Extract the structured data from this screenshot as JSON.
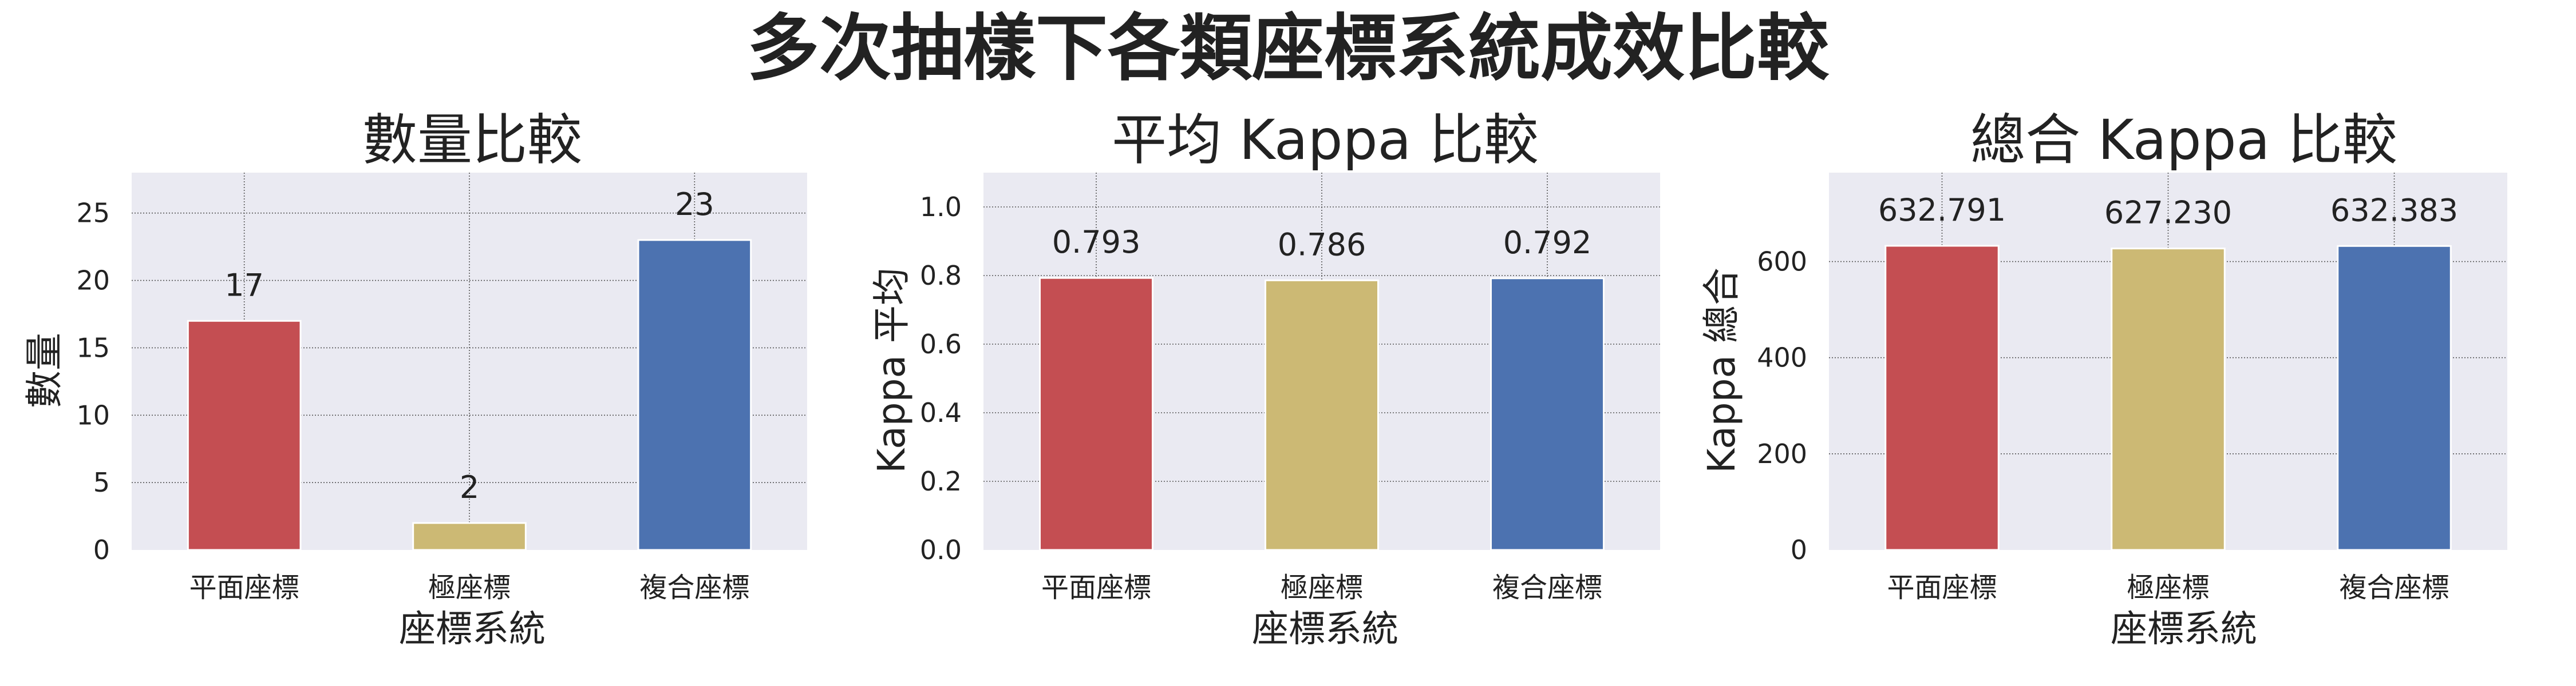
{
  "suptitle": "多次抽樣下各類座標系統成效比較",
  "colors": {
    "plot_bg": "#eaeaf2",
    "grid": "#555555",
    "text": "#222222"
  },
  "chart_data": [
    {
      "type": "bar",
      "title": "數量比較",
      "xlabel": "座標系統",
      "ylabel": "數量",
      "categories": [
        "平面座標",
        "極座標",
        "複合座標"
      ],
      "values": [
        17,
        2,
        23
      ],
      "data_labels": [
        "17",
        "2",
        "23"
      ],
      "colors": [
        "#c44e52",
        "#ccb974",
        "#4c72b0"
      ],
      "ylim": [
        0,
        28
      ],
      "yticks": [
        0,
        5,
        10,
        15,
        20,
        25
      ],
      "ytick_labels": [
        "0",
        "5",
        "10",
        "15",
        "20",
        "25"
      ],
      "grid": true
    },
    {
      "type": "bar",
      "title": "平均 Kappa 比較",
      "xlabel": "座標系統",
      "ylabel": "Kappa 平均",
      "categories": [
        "平面座標",
        "極座標",
        "複合座標"
      ],
      "values": [
        0.793,
        0.786,
        0.792
      ],
      "data_labels": [
        "0.793",
        "0.786",
        "0.792"
      ],
      "colors": [
        "#c44e52",
        "#ccb974",
        "#4c72b0"
      ],
      "ylim": [
        0,
        1.1
      ],
      "yticks": [
        0,
        0.2,
        0.4,
        0.6,
        0.8,
        1.0
      ],
      "ytick_labels": [
        "0.0",
        "0.2",
        "0.4",
        "0.6",
        "0.8",
        "1.0"
      ],
      "grid": true
    },
    {
      "type": "bar",
      "title": "總合 Kappa 比較",
      "xlabel": "座標系統",
      "ylabel": "Kappa 總合",
      "categories": [
        "平面座標",
        "極座標",
        "複合座標"
      ],
      "values": [
        632.791,
        627.23,
        632.383
      ],
      "data_labels": [
        "632.791",
        "627.230",
        "632.383"
      ],
      "colors": [
        "#c44e52",
        "#ccb974",
        "#4c72b0"
      ],
      "ylim": [
        0,
        785
      ],
      "yticks": [
        0,
        200,
        400,
        600
      ],
      "ytick_labels": [
        "0",
        "200",
        "400",
        "600"
      ],
      "grid": true
    }
  ]
}
